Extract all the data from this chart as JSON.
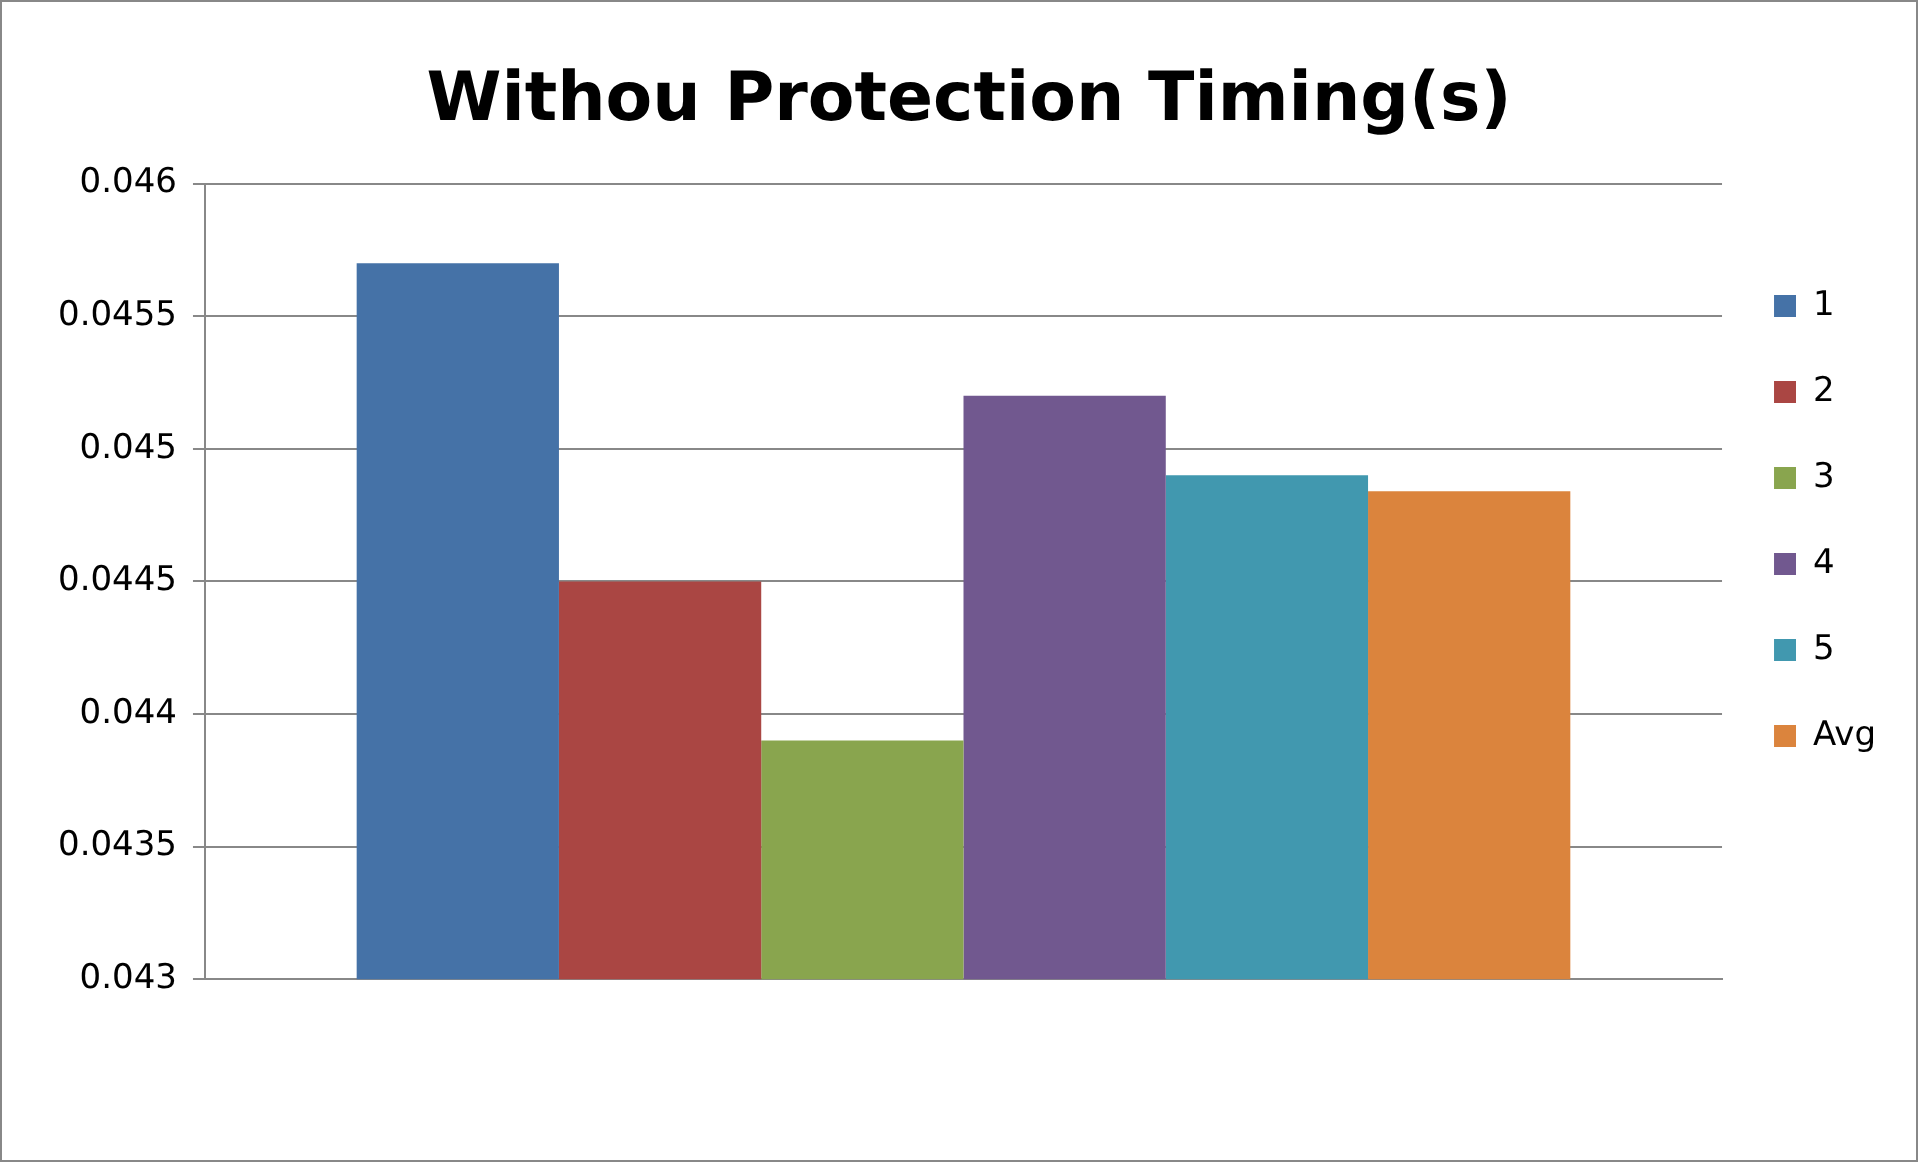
{
  "chart_data": {
    "type": "bar",
    "title": "Withou Protection Timing(s)",
    "categories": [
      null
    ],
    "series": [
      {
        "name": "1",
        "color": "#4572a7",
        "values": [
          0.0457
        ]
      },
      {
        "name": "2",
        "color": "#aa4643",
        "values": [
          0.0445
        ]
      },
      {
        "name": "3",
        "color": "#89a54e",
        "values": [
          0.0439
        ]
      },
      {
        "name": "4",
        "color": "#71588f",
        "values": [
          0.0452
        ]
      },
      {
        "name": "5",
        "color": "#4198af",
        "values": [
          0.0449
        ]
      },
      {
        "name": "Avg",
        "color": "#db843d",
        "values": [
          0.04484
        ]
      }
    ],
    "ylim": [
      0.043,
      0.046
    ],
    "yticks": [
      0.043,
      0.0435,
      0.044,
      0.0445,
      0.045,
      0.0455,
      0.046
    ],
    "grid": "y",
    "legend": "right"
  }
}
